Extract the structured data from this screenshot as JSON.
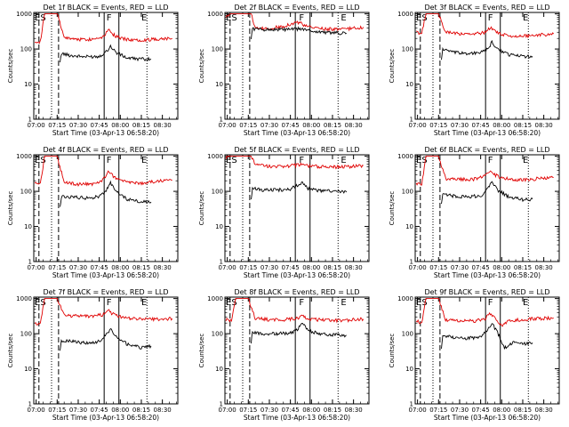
{
  "colors": {
    "events": "#000000",
    "lld": "#e00000",
    "frame": "#000000",
    "background": "#ffffff"
  },
  "chart_data": [
    {
      "type": "line",
      "title": "Det 1f BLACK = Events, RED = LLD",
      "xlabel": "Start Time (03-Apr-13 06:58:20)",
      "ylabel": "Counts/sec",
      "x_ticks": [
        "07:00",
        "07:15",
        "07:30",
        "07:45",
        "08:00",
        "08:15",
        "08:30"
      ],
      "y_ticks": [
        "1",
        "10",
        "100",
        "1000"
      ],
      "yscale": "log",
      "ylim": [
        1,
        1100
      ],
      "markers": [
        {
          "label": "E",
          "x": "07:01"
        },
        {
          "label": "S",
          "x": "07:05"
        },
        {
          "label": "F",
          "x": "07:52"
        },
        {
          "label": "E",
          "x": "08:17"
        }
      ],
      "series": [
        {
          "color": "red",
          "x": [
            "06:59",
            "07:03",
            "07:06",
            "07:09",
            "07:12",
            "07:15",
            "07:20",
            "07:30",
            "07:40",
            "07:48",
            "07:52",
            "07:55",
            "08:00",
            "08:10",
            "08:20",
            "08:30",
            "08:37"
          ],
          "y": [
            170,
            160,
            1000,
            1000,
            1000,
            1000,
            210,
            190,
            190,
            230,
            380,
            260,
            200,
            180,
            185,
            200,
            200
          ]
        },
        {
          "color": "black",
          "x": [
            "07:17",
            "07:18",
            "07:25",
            "07:35",
            "07:45",
            "07:50",
            "07:53",
            "07:57",
            "08:05",
            "08:15",
            "08:22"
          ],
          "y": [
            38,
            75,
            65,
            60,
            62,
            85,
            120,
            80,
            55,
            52,
            52
          ]
        }
      ]
    },
    {
      "type": "line",
      "title": "Det 2f BLACK = Events, RED = LLD",
      "xlabel": "Start Time (03-Apr-13 06:58:20)",
      "ylabel": "Counts/sec",
      "x_ticks": [
        "07:00",
        "07:15",
        "07:30",
        "07:45",
        "08:00",
        "08:15",
        "08:30"
      ],
      "y_ticks": [
        "1",
        "10",
        "100",
        "1000"
      ],
      "yscale": "log",
      "ylim": [
        1,
        1100
      ],
      "markers": [
        {
          "label": "E",
          "x": "07:01"
        },
        {
          "label": "S",
          "x": "07:05"
        },
        {
          "label": "F",
          "x": "07:53"
        },
        {
          "label": "E",
          "x": "08:23"
        }
      ],
      "series": [
        {
          "color": "red",
          "x": [
            "06:59",
            "07:02",
            "07:06",
            "07:09",
            "07:12",
            "07:15",
            "07:17",
            "07:20",
            "07:30",
            "07:40",
            "07:50",
            "07:53",
            "07:55",
            "08:00",
            "08:10",
            "08:20",
            "08:30",
            "08:37"
          ],
          "y": [
            850,
            1000,
            1000,
            1000,
            1000,
            1000,
            1000,
            380,
            380,
            450,
            580,
            530,
            460,
            410,
            380,
            360,
            390,
            420
          ]
        },
        {
          "color": "black",
          "x": [
            "07:17",
            "07:18",
            "07:25",
            "07:35",
            "07:45",
            "07:53",
            "07:57",
            "08:05",
            "08:15",
            "08:25"
          ],
          "y": [
            200,
            380,
            360,
            360,
            360,
            380,
            340,
            310,
            290,
            280
          ]
        }
      ]
    },
    {
      "type": "line",
      "title": "Det 3f BLACK = Events, RED = LLD",
      "xlabel": "Start Time (03-Apr-13 06:58:20)",
      "ylabel": "Counts/sec",
      "x_ticks": [
        "07:00",
        "07:15",
        "07:30",
        "07:45",
        "08:00",
        "08:15",
        "08:30"
      ],
      "y_ticks": [
        "1",
        "10",
        "100",
        "1000"
      ],
      "yscale": "log",
      "ylim": [
        1,
        1100
      ],
      "markers": [
        {
          "label": "E",
          "x": "07:01"
        },
        {
          "label": "S",
          "x": "07:05"
        },
        {
          "label": "F",
          "x": "07:52"
        },
        {
          "label": "E",
          "x": "08:17"
        }
      ],
      "series": [
        {
          "color": "red",
          "x": [
            "06:59",
            "07:03",
            "07:06",
            "07:09",
            "07:12",
            "07:15",
            "07:20",
            "07:30",
            "07:40",
            "07:48",
            "07:52",
            "07:55",
            "08:00",
            "08:10",
            "08:20",
            "08:30",
            "08:37"
          ],
          "y": [
            300,
            280,
            1000,
            1000,
            1000,
            1000,
            310,
            270,
            260,
            300,
            420,
            330,
            260,
            230,
            240,
            260,
            270
          ]
        },
        {
          "color": "black",
          "x": [
            "07:17",
            "07:18",
            "07:25",
            "07:35",
            "07:45",
            "07:50",
            "07:53",
            "07:57",
            "08:05",
            "08:15",
            "08:22"
          ],
          "y": [
            50,
            100,
            80,
            75,
            78,
            100,
            155,
            100,
            70,
            62,
            62
          ]
        }
      ]
    },
    {
      "type": "line",
      "title": "Det 4f BLACK = Events, RED = LLD",
      "xlabel": "Start Time (03-Apr-13 06:58:20)",
      "ylabel": "Counts/sec",
      "x_ticks": [
        "07:00",
        "07:15",
        "07:30",
        "07:45",
        "08:00",
        "08:15",
        "08:30"
      ],
      "y_ticks": [
        "1",
        "10",
        "100",
        "1000"
      ],
      "yscale": "log",
      "ylim": [
        1,
        1100
      ],
      "markers": [
        {
          "label": "E",
          "x": "07:01"
        },
        {
          "label": "S",
          "x": "07:05"
        },
        {
          "label": "F",
          "x": "07:52"
        },
        {
          "label": "E",
          "x": "08:17"
        }
      ],
      "series": [
        {
          "color": "red",
          "x": [
            "06:59",
            "07:03",
            "07:06",
            "07:09",
            "07:12",
            "07:15",
            "07:20",
            "07:30",
            "07:40",
            "07:48",
            "07:52",
            "07:55",
            "08:00",
            "08:10",
            "08:20",
            "08:30",
            "08:37"
          ],
          "y": [
            170,
            160,
            1000,
            1000,
            1000,
            1000,
            180,
            160,
            160,
            220,
            390,
            260,
            200,
            170,
            180,
            200,
            210
          ]
        },
        {
          "color": "black",
          "x": [
            "07:17",
            "07:18",
            "07:25",
            "07:35",
            "07:45",
            "07:50",
            "07:53",
            "07:57",
            "08:05",
            "08:15",
            "08:22"
          ],
          "y": [
            35,
            70,
            70,
            65,
            70,
            110,
            170,
            100,
            60,
            50,
            50
          ]
        }
      ]
    },
    {
      "type": "line",
      "title": "Det 5f BLACK = Events, RED = LLD",
      "xlabel": "Start Time (03-Apr-13 06:58:20)",
      "ylabel": "Counts/sec",
      "x_ticks": [
        "07:00",
        "07:15",
        "07:30",
        "07:45",
        "08:00",
        "08:15",
        "08:30"
      ],
      "y_ticks": [
        "1",
        "10",
        "100",
        "1000"
      ],
      "yscale": "log",
      "ylim": [
        1,
        1100
      ],
      "markers": [
        {
          "label": "E",
          "x": "07:01"
        },
        {
          "label": "S",
          "x": "07:05"
        },
        {
          "label": "F",
          "x": "07:53"
        },
        {
          "label": "E",
          "x": "08:23"
        }
      ],
      "series": [
        {
          "color": "red",
          "x": [
            "06:59",
            "07:02",
            "07:06",
            "07:09",
            "07:12",
            "07:15",
            "07:17",
            "07:20",
            "07:30",
            "07:40",
            "07:50",
            "07:53",
            "07:55",
            "08:00",
            "08:10",
            "08:20",
            "08:30",
            "08:37"
          ],
          "y": [
            900,
            1000,
            1000,
            1000,
            1000,
            1000,
            1000,
            560,
            520,
            520,
            560,
            620,
            560,
            520,
            500,
            500,
            520,
            540
          ]
        },
        {
          "color": "black",
          "x": [
            "07:17",
            "07:18",
            "07:25",
            "07:35",
            "07:45",
            "07:53",
            "07:57",
            "08:05",
            "08:15",
            "08:25"
          ],
          "y": [
            60,
            120,
            110,
            110,
            115,
            180,
            125,
            105,
            100,
            95
          ]
        }
      ]
    },
    {
      "type": "line",
      "title": "Det 6f BLACK = Events, RED = LLD",
      "xlabel": "Start Time (03-Apr-13 06:58:20)",
      "ylabel": "Counts/sec",
      "x_ticks": [
        "07:00",
        "07:15",
        "07:30",
        "07:45",
        "08:00",
        "08:15",
        "08:30"
      ],
      "y_ticks": [
        "1",
        "10",
        "100",
        "1000"
      ],
      "yscale": "log",
      "ylim": [
        1,
        1100
      ],
      "markers": [
        {
          "label": "E",
          "x": "07:01"
        },
        {
          "label": "S",
          "x": "07:05"
        },
        {
          "label": "F",
          "x": "07:52"
        },
        {
          "label": "E",
          "x": "08:17"
        }
      ],
      "series": [
        {
          "color": "red",
          "x": [
            "06:59",
            "07:03",
            "07:06",
            "07:09",
            "07:12",
            "07:15",
            "07:20",
            "07:30",
            "07:40",
            "07:48",
            "07:52",
            "07:55",
            "08:00",
            "08:10",
            "08:20",
            "08:30",
            "08:37"
          ],
          "y": [
            170,
            160,
            1000,
            1000,
            1000,
            1000,
            230,
            220,
            220,
            290,
            420,
            300,
            240,
            210,
            220,
            240,
            250
          ]
        },
        {
          "color": "black",
          "x": [
            "07:17",
            "07:18",
            "07:25",
            "07:35",
            "07:45",
            "07:50",
            "07:53",
            "07:57",
            "08:05",
            "08:15",
            "08:22"
          ],
          "y": [
            40,
            80,
            75,
            70,
            75,
            120,
            200,
            110,
            70,
            58,
            60
          ]
        }
      ]
    },
    {
      "type": "line",
      "title": "Det 7f BLACK = Events, RED = LLD",
      "xlabel": "Start Time (03-Apr-13 06:58:20)",
      "ylabel": "Counts/sec",
      "x_ticks": [
        "07:00",
        "07:15",
        "07:30",
        "07:45",
        "08:00",
        "08:15",
        "08:30"
      ],
      "y_ticks": [
        "1",
        "10",
        "100",
        "1000"
      ],
      "yscale": "log",
      "ylim": [
        1,
        1100
      ],
      "markers": [
        {
          "label": "E",
          "x": "07:01"
        },
        {
          "label": "S",
          "x": "07:05"
        },
        {
          "label": "F",
          "x": "07:52"
        },
        {
          "label": "E",
          "x": "08:17"
        }
      ],
      "series": [
        {
          "color": "red",
          "x": [
            "06:59",
            "07:03",
            "07:06",
            "07:09",
            "07:12",
            "07:15",
            "07:20",
            "07:30",
            "07:40",
            "07:48",
            "07:52",
            "07:55",
            "08:00",
            "08:10",
            "08:20",
            "08:30",
            "08:37"
          ],
          "y": [
            200,
            190,
            1000,
            1000,
            1000,
            1000,
            330,
            320,
            310,
            350,
            440,
            360,
            300,
            270,
            260,
            260,
            270
          ]
        },
        {
          "color": "black",
          "x": [
            "07:17",
            "07:18",
            "07:25",
            "07:35",
            "07:45",
            "07:50",
            "07:53",
            "07:57",
            "08:05",
            "08:15",
            "08:22"
          ],
          "y": [
            35,
            65,
            60,
            55,
            60,
            95,
            140,
            80,
            50,
            40,
            45
          ]
        }
      ]
    },
    {
      "type": "line",
      "title": "Det 8f BLACK = Events, RED = LLD",
      "xlabel": "Start Time (03-Apr-13 06:58:20)",
      "ylabel": "Counts/sec",
      "x_ticks": [
        "07:00",
        "07:15",
        "07:30",
        "07:45",
        "08:00",
        "08:15",
        "08:30"
      ],
      "y_ticks": [
        "1",
        "10",
        "100",
        "1000"
      ],
      "yscale": "log",
      "ylim": [
        1,
        1100
      ],
      "markers": [
        {
          "label": "E",
          "x": "07:01"
        },
        {
          "label": "S",
          "x": "07:05"
        },
        {
          "label": "F",
          "x": "07:53"
        },
        {
          "label": "E",
          "x": "08:23"
        }
      ],
      "series": [
        {
          "color": "red",
          "x": [
            "06:59",
            "07:03",
            "07:06",
            "07:09",
            "07:12",
            "07:15",
            "07:20",
            "07:30",
            "07:40",
            "07:50",
            "07:53",
            "07:56",
            "08:00",
            "08:10",
            "08:20",
            "08:30",
            "08:37"
          ],
          "y": [
            250,
            230,
            1000,
            1000,
            1000,
            1000,
            280,
            250,
            250,
            270,
            360,
            290,
            260,
            240,
            240,
            250,
            260
          ]
        },
        {
          "color": "black",
          "x": [
            "07:17",
            "07:18",
            "07:25",
            "07:35",
            "07:45",
            "07:50",
            "07:53",
            "07:57",
            "08:05",
            "08:15",
            "08:25"
          ],
          "y": [
            55,
            110,
            100,
            100,
            105,
            130,
            210,
            130,
            100,
            95,
            90
          ]
        }
      ]
    },
    {
      "type": "line",
      "title": "Det 9f BLACK = Events, RED = LLD",
      "xlabel": "Start Time (03-Apr-13 06:58:20)",
      "ylabel": "Counts/sec",
      "x_ticks": [
        "07:00",
        "07:15",
        "07:30",
        "07:45",
        "08:00",
        "08:15",
        "08:30"
      ],
      "y_ticks": [
        "1",
        "10",
        "100",
        "1000"
      ],
      "yscale": "log",
      "ylim": [
        1,
        1100
      ],
      "markers": [
        {
          "label": "E",
          "x": "07:01"
        },
        {
          "label": "S",
          "x": "07:05"
        },
        {
          "label": "F",
          "x": "07:52"
        },
        {
          "label": "E",
          "x": "08:17"
        }
      ],
      "series": [
        {
          "color": "red",
          "x": [
            "06:59",
            "07:03",
            "07:06",
            "07:09",
            "07:12",
            "07:15",
            "07:20",
            "07:30",
            "07:40",
            "07:48",
            "07:52",
            "07:55",
            "08:00",
            "08:05",
            "08:15",
            "08:25",
            "08:37"
          ],
          "y": [
            230,
            210,
            1000,
            1000,
            1000,
            1000,
            250,
            230,
            230,
            270,
            380,
            280,
            170,
            240,
            250,
            270,
            280
          ]
        },
        {
          "color": "black",
          "x": [
            "07:17",
            "07:18",
            "07:25",
            "07:35",
            "07:45",
            "07:50",
            "07:53",
            "07:57",
            "08:02",
            "08:08",
            "08:15",
            "08:22"
          ],
          "y": [
            40,
            85,
            80,
            75,
            80,
            130,
            200,
            110,
            40,
            55,
            52,
            55
          ]
        }
      ]
    }
  ]
}
